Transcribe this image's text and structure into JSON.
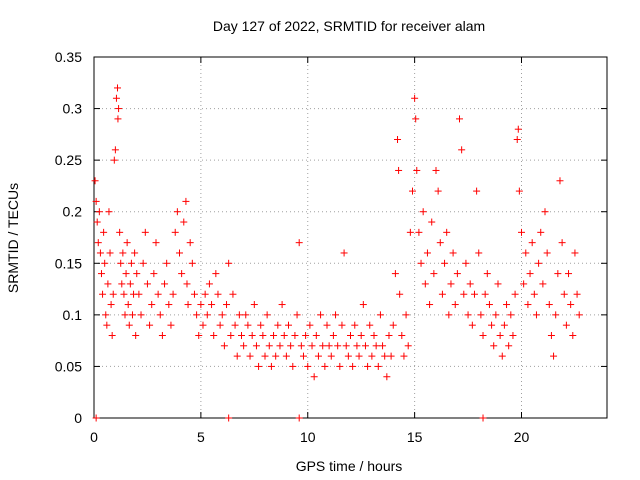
{
  "chart_data": {
    "type": "scatter",
    "title": "Day 127 of 2022, SRMTID for receiver alam",
    "xlabel": "GPS time / hours",
    "ylabel": "SRMTID / TECUs",
    "xlim": [
      0,
      24
    ],
    "ylim": [
      0,
      0.35
    ],
    "xticks": [
      0,
      5,
      10,
      15,
      20
    ],
    "yticks": [
      0,
      0.05,
      0.1,
      0.15,
      0.2,
      0.25,
      0.3,
      0.35
    ],
    "xtick_labels": [
      "0",
      "5",
      "10",
      "15",
      "20"
    ],
    "ytick_labels": [
      "0",
      "0.05",
      "0.1",
      "0.15",
      "0.2",
      "0.25",
      "0.3",
      "0.35"
    ],
    "grid": true,
    "marker": "+",
    "color": "#ff0000",
    "series": [
      {
        "name": "SRMTID",
        "points": [
          [
            0.05,
            0.23
          ],
          [
            0.1,
            0.21
          ],
          [
            0.15,
            0.19
          ],
          [
            0.2,
            0.17
          ],
          [
            0.25,
            0.2
          ],
          [
            0.3,
            0.16
          ],
          [
            0.35,
            0.14
          ],
          [
            0.4,
            0.12
          ],
          [
            0.45,
            0.18
          ],
          [
            0.5,
            0.15
          ],
          [
            0.55,
            0.1
          ],
          [
            0.6,
            0.09
          ],
          [
            0.65,
            0.13
          ],
          [
            0.7,
            0.2
          ],
          [
            0.75,
            0.16
          ],
          [
            0.8,
            0.11
          ],
          [
            0.85,
            0.08
          ],
          [
            0.9,
            0.12
          ],
          [
            0.95,
            0.25
          ],
          [
            1.0,
            0.26
          ],
          [
            1.05,
            0.31
          ],
          [
            1.1,
            0.32
          ],
          [
            1.12,
            0.29
          ],
          [
            1.15,
            0.3
          ],
          [
            1.2,
            0.18
          ],
          [
            1.25,
            0.15
          ],
          [
            1.3,
            0.13
          ],
          [
            1.35,
            0.16
          ],
          [
            1.4,
            0.12
          ],
          [
            1.45,
            0.1
          ],
          [
            1.5,
            0.14
          ],
          [
            1.55,
            0.17
          ],
          [
            1.6,
            0.11
          ],
          [
            1.65,
            0.09
          ],
          [
            1.7,
            0.13
          ],
          [
            1.75,
            0.15
          ],
          [
            1.8,
            0.1
          ],
          [
            1.85,
            0.12
          ],
          [
            1.9,
            0.16
          ],
          [
            1.95,
            0.08
          ],
          [
            2.0,
            0.14
          ],
          [
            2.1,
            0.12
          ],
          [
            2.2,
            0.1
          ],
          [
            2.3,
            0.15
          ],
          [
            2.4,
            0.18
          ],
          [
            2.5,
            0.13
          ],
          [
            2.6,
            0.09
          ],
          [
            2.7,
            0.11
          ],
          [
            2.8,
            0.14
          ],
          [
            2.9,
            0.17
          ],
          [
            3.0,
            0.12
          ],
          [
            3.1,
            0.1
          ],
          [
            3.2,
            0.08
          ],
          [
            3.3,
            0.13
          ],
          [
            3.4,
            0.15
          ],
          [
            3.5,
            0.11
          ],
          [
            3.6,
            0.09
          ],
          [
            3.7,
            0.12
          ],
          [
            3.8,
            0.18
          ],
          [
            3.9,
            0.2
          ],
          [
            4.0,
            0.16
          ],
          [
            4.1,
            0.14
          ],
          [
            4.2,
            0.19
          ],
          [
            4.3,
            0.21
          ],
          [
            4.35,
            0.13
          ],
          [
            4.4,
            0.11
          ],
          [
            4.5,
            0.17
          ],
          [
            4.6,
            0.15
          ],
          [
            4.7,
            0.12
          ],
          [
            4.8,
            0.1
          ],
          [
            4.9,
            0.08
          ],
          [
            5.0,
            0.11
          ],
          [
            5.1,
            0.09
          ],
          [
            5.2,
            0.12
          ],
          [
            5.3,
            0.1
          ],
          [
            5.4,
            0.13
          ],
          [
            5.5,
            0.11
          ],
          [
            5.6,
            0.08
          ],
          [
            5.7,
            0.14
          ],
          [
            5.8,
            0.12
          ],
          [
            5.9,
            0.09
          ],
          [
            6.0,
            0.1
          ],
          [
            6.1,
            0.07
          ],
          [
            6.2,
            0.11
          ],
          [
            6.3,
            0.15
          ],
          [
            6.4,
            0.08
          ],
          [
            6.5,
            0.12
          ],
          [
            6.6,
            0.09
          ],
          [
            6.7,
            0.06
          ],
          [
            6.8,
            0.1
          ],
          [
            6.9,
            0.08
          ],
          [
            7.0,
            0.07
          ],
          [
            7.1,
            0.1
          ],
          [
            7.2,
            0.09
          ],
          [
            7.3,
            0.06
          ],
          [
            7.4,
            0.08
          ],
          [
            7.5,
            0.11
          ],
          [
            7.6,
            0.07
          ],
          [
            7.7,
            0.05
          ],
          [
            7.8,
            0.09
          ],
          [
            7.9,
            0.08
          ],
          [
            8.0,
            0.06
          ],
          [
            8.1,
            0.1
          ],
          [
            8.2,
            0.07
          ],
          [
            8.3,
            0.05
          ],
          [
            8.4,
            0.08
          ],
          [
            8.5,
            0.06
          ],
          [
            8.6,
            0.09
          ],
          [
            8.7,
            0.07
          ],
          [
            8.8,
            0.11
          ],
          [
            8.9,
            0.08
          ],
          [
            9.0,
            0.06
          ],
          [
            9.1,
            0.09
          ],
          [
            9.2,
            0.07
          ],
          [
            9.3,
            0.05
          ],
          [
            9.4,
            0.08
          ],
          [
            9.5,
            0.1
          ],
          [
            9.6,
            0.17
          ],
          [
            9.7,
            0.07
          ],
          [
            9.8,
            0.06
          ],
          [
            9.9,
            0.08
          ],
          [
            10.0,
            0.05
          ],
          [
            10.1,
            0.09
          ],
          [
            10.2,
            0.07
          ],
          [
            10.3,
            0.04
          ],
          [
            10.4,
            0.08
          ],
          [
            10.5,
            0.06
          ],
          [
            10.6,
            0.1
          ],
          [
            10.7,
            0.07
          ],
          [
            10.8,
            0.05
          ],
          [
            10.9,
            0.09
          ],
          [
            11.0,
            0.07
          ],
          [
            11.1,
            0.06
          ],
          [
            11.2,
            0.08
          ],
          [
            11.3,
            0.1
          ],
          [
            11.4,
            0.07
          ],
          [
            11.5,
            0.05
          ],
          [
            11.6,
            0.09
          ],
          [
            11.7,
            0.16
          ],
          [
            11.8,
            0.07
          ],
          [
            11.9,
            0.06
          ],
          [
            12.0,
            0.08
          ],
          [
            12.1,
            0.05
          ],
          [
            12.2,
            0.09
          ],
          [
            12.3,
            0.07
          ],
          [
            12.4,
            0.06
          ],
          [
            12.5,
            0.08
          ],
          [
            12.6,
            0.11
          ],
          [
            12.7,
            0.07
          ],
          [
            12.8,
            0.05
          ],
          [
            12.9,
            0.09
          ],
          [
            13.0,
            0.06
          ],
          [
            13.1,
            0.08
          ],
          [
            13.2,
            0.07
          ],
          [
            13.3,
            0.05
          ],
          [
            13.4,
            0.1
          ],
          [
            13.5,
            0.07
          ],
          [
            13.6,
            0.06
          ],
          [
            13.7,
            0.04
          ],
          [
            13.8,
            0.08
          ],
          [
            13.9,
            0.06
          ],
          [
            14.0,
            0.09
          ],
          [
            14.1,
            0.14
          ],
          [
            14.2,
            0.27
          ],
          [
            14.25,
            0.24
          ],
          [
            14.3,
            0.12
          ],
          [
            14.4,
            0.08
          ],
          [
            14.5,
            0.06
          ],
          [
            14.6,
            0.1
          ],
          [
            14.7,
            0.07
          ],
          [
            14.8,
            0.18
          ],
          [
            14.9,
            0.22
          ],
          [
            15.0,
            0.31
          ],
          [
            15.05,
            0.29
          ],
          [
            15.1,
            0.24
          ],
          [
            15.2,
            0.18
          ],
          [
            15.3,
            0.15
          ],
          [
            15.4,
            0.2
          ],
          [
            15.5,
            0.13
          ],
          [
            15.6,
            0.16
          ],
          [
            15.7,
            0.11
          ],
          [
            15.8,
            0.19
          ],
          [
            15.9,
            0.14
          ],
          [
            16.0,
            0.24
          ],
          [
            16.1,
            0.22
          ],
          [
            16.2,
            0.17
          ],
          [
            16.3,
            0.12
          ],
          [
            16.4,
            0.15
          ],
          [
            16.5,
            0.18
          ],
          [
            16.6,
            0.1
          ],
          [
            16.7,
            0.13
          ],
          [
            16.8,
            0.16
          ],
          [
            16.9,
            0.11
          ],
          [
            17.0,
            0.14
          ],
          [
            17.1,
            0.29
          ],
          [
            17.2,
            0.26
          ],
          [
            17.3,
            0.12
          ],
          [
            17.4,
            0.15
          ],
          [
            17.5,
            0.1
          ],
          [
            17.6,
            0.13
          ],
          [
            17.7,
            0.09
          ],
          [
            17.8,
            0.12
          ],
          [
            17.9,
            0.22
          ],
          [
            18.0,
            0.16
          ],
          [
            18.1,
            0.1
          ],
          [
            18.2,
            0.08
          ],
          [
            18.3,
            0.12
          ],
          [
            18.4,
            0.14
          ],
          [
            18.5,
            0.11
          ],
          [
            18.6,
            0.09
          ],
          [
            18.7,
            0.07
          ],
          [
            18.8,
            0.1
          ],
          [
            18.9,
            0.13
          ],
          [
            19.0,
            0.08
          ],
          [
            19.1,
            0.06
          ],
          [
            19.2,
            0.09
          ],
          [
            19.3,
            0.11
          ],
          [
            19.4,
            0.07
          ],
          [
            19.5,
            0.1
          ],
          [
            19.6,
            0.08
          ],
          [
            19.7,
            0.12
          ],
          [
            19.8,
            0.27
          ],
          [
            19.85,
            0.28
          ],
          [
            19.9,
            0.22
          ],
          [
            20.0,
            0.18
          ],
          [
            20.1,
            0.13
          ],
          [
            20.2,
            0.16
          ],
          [
            20.3,
            0.11
          ],
          [
            20.4,
            0.14
          ],
          [
            20.5,
            0.17
          ],
          [
            20.6,
            0.12
          ],
          [
            20.7,
            0.1
          ],
          [
            20.8,
            0.15
          ],
          [
            20.9,
            0.18
          ],
          [
            21.0,
            0.13
          ],
          [
            21.1,
            0.2
          ],
          [
            21.2,
            0.16
          ],
          [
            21.3,
            0.11
          ],
          [
            21.4,
            0.08
          ],
          [
            21.5,
            0.06
          ],
          [
            21.6,
            0.1
          ],
          [
            21.7,
            0.14
          ],
          [
            21.8,
            0.23
          ],
          [
            21.9,
            0.17
          ],
          [
            22.0,
            0.12
          ],
          [
            22.1,
            0.09
          ],
          [
            22.2,
            0.14
          ],
          [
            22.3,
            0.11
          ],
          [
            22.4,
            0.08
          ],
          [
            22.5,
            0.16
          ],
          [
            22.6,
            0.12
          ],
          [
            22.7,
            0.1
          ],
          [
            0.1,
            0.0
          ],
          [
            9.6,
            0.0
          ],
          [
            18.2,
            0.0
          ],
          [
            6.3,
            0.0
          ]
        ]
      }
    ]
  }
}
